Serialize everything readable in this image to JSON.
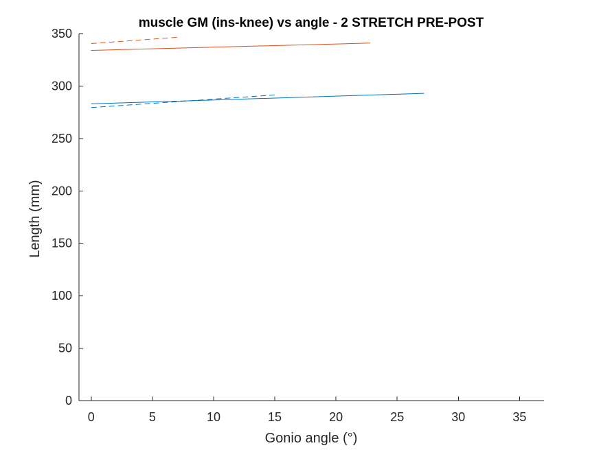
{
  "chart_data": {
    "type": "line",
    "title": "muscle GM (ins-knee) vs angle - 2 STRETCH PRE-POST",
    "xlabel": "Gonio angle (°)",
    "ylabel": "Length (mm)",
    "xlim": [
      -1,
      37
    ],
    "ylim": [
      0,
      350
    ],
    "xticks": [
      0,
      5,
      10,
      15,
      20,
      25,
      30,
      35
    ],
    "yticks": [
      0,
      50,
      100,
      150,
      200,
      250,
      300,
      350
    ],
    "grid": false,
    "legend": "none",
    "series": [
      {
        "color": "#D95319",
        "linestyle": "solid",
        "x": [
          0,
          22.8
        ],
        "y": [
          334,
          341
        ]
      },
      {
        "color": "#D95319",
        "linestyle": "dashed",
        "x": [
          0,
          7
        ],
        "y": [
          340.5,
          346.5
        ]
      },
      {
        "color": "#0072BD",
        "linestyle": "solid",
        "x": [
          0,
          27.2
        ],
        "y": [
          283,
          293
        ]
      },
      {
        "color": "#0072BD",
        "linestyle": "dashed",
        "x": [
          0,
          15
        ],
        "y": [
          279.5,
          291.5
        ]
      }
    ]
  }
}
